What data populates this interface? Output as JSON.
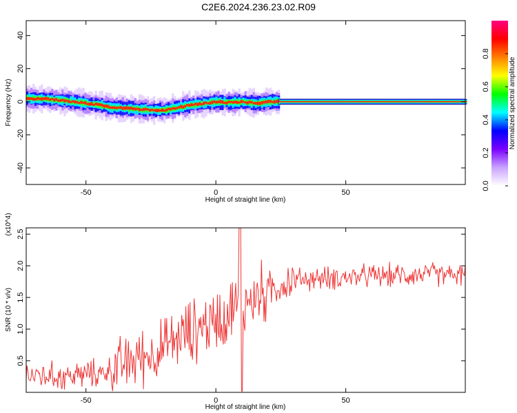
{
  "title": "C2E6.2024.236.23.02.R09",
  "chart_data": [
    {
      "type": "heatmap",
      "xlabel": "Height of straight line (km)",
      "ylabel": "Frequency (Hz)",
      "xlim": [
        -73,
        96
      ],
      "ylim": [
        -50,
        49
      ],
      "x_ticks": [
        "-50",
        "0",
        "50"
      ],
      "y_ticks": [
        "-40",
        "-20",
        "0",
        "20",
        "40"
      ],
      "colorbar": {
        "label": "Normalized spectral amplitude",
        "range": [
          0,
          1
        ],
        "ticks": [
          "0.0",
          "0.2",
          "0.4",
          "0.6",
          "0.8"
        ],
        "colors": [
          "#ffffff",
          "#c9a3ff",
          "#7a00ff",
          "#0000ff",
          "#00ffff",
          "#00ff00",
          "#ffff00",
          "#ff8000",
          "#ff0000",
          "#ff0080"
        ]
      },
      "ridge_frequency_profile": [
        [
          -73,
          2
        ],
        [
          -65,
          1.5
        ],
        [
          -58,
          0.5
        ],
        [
          -50,
          -1
        ],
        [
          -45,
          -2
        ],
        [
          -40,
          -3.5
        ],
        [
          -35,
          -4
        ],
        [
          -30,
          -4.5
        ],
        [
          -25,
          -5
        ],
        [
          -20,
          -5
        ],
        [
          -15,
          -3.5
        ],
        [
          -10,
          -2
        ],
        [
          -5,
          -1
        ],
        [
          0,
          0
        ],
        [
          5,
          -0.5
        ],
        [
          10,
          0
        ],
        [
          15,
          -1
        ],
        [
          20,
          0
        ],
        [
          25,
          0
        ],
        [
          30,
          0
        ],
        [
          96,
          0
        ]
      ]
    },
    {
      "type": "line",
      "xlabel": "Height of straight line (km)",
      "ylabel": "SNR (10 * v/v)",
      "y_multiplier": "(x10^4)",
      "xlim": [
        -73,
        96
      ],
      "ylim": [
        0,
        2.6
      ],
      "x_ticks": [
        "-50",
        "0",
        "50"
      ],
      "y_ticks": [
        "0.5",
        "1.0",
        "1.5",
        "2.0",
        "2.5"
      ],
      "series_color": "#ee3333",
      "trend": [
        [
          -73,
          0.28
        ],
        [
          -60,
          0.25
        ],
        [
          -45,
          0.3
        ],
        [
          -40,
          0.35
        ],
        [
          -35,
          0.45
        ],
        [
          -30,
          0.55
        ],
        [
          -25,
          0.6
        ],
        [
          -20,
          0.7
        ],
        [
          -15,
          0.85
        ],
        [
          -10,
          0.95
        ],
        [
          -5,
          1.05
        ],
        [
          0,
          1.15
        ],
        [
          5,
          1.3
        ],
        [
          10,
          1.4
        ],
        [
          15,
          1.5
        ],
        [
          20,
          1.6
        ],
        [
          25,
          1.7
        ],
        [
          30,
          1.78
        ],
        [
          40,
          1.8
        ],
        [
          50,
          1.82
        ],
        [
          60,
          1.84
        ],
        [
          70,
          1.85
        ],
        [
          80,
          1.87
        ],
        [
          96,
          1.85
        ]
      ]
    }
  ]
}
